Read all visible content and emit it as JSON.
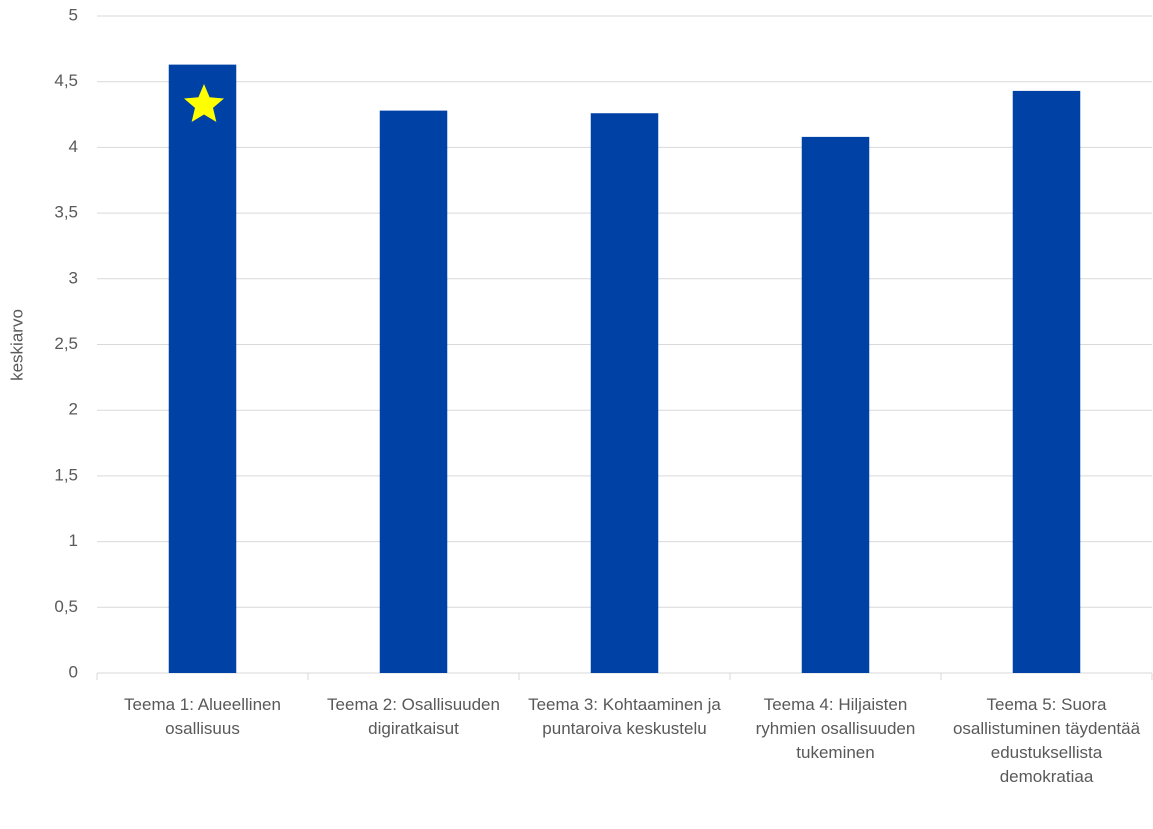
{
  "chart_data": {
    "type": "bar",
    "y_label": "keskiarvo",
    "categories": [
      "Teema 1: Alueellinen osallisuus",
      "Teema 2: Osallisuuden digiratkaisut",
      "Teema 3: Kohtaaminen ja puntaroiva keskustelu",
      "Teema 4: Hiljaisten ryhmien osallisuuden tukeminen",
      "Teema 5: Suora osallistuminen täydentää edustuksellista demokratiaa"
    ],
    "values": [
      4.63,
      4.28,
      4.26,
      4.08,
      4.43
    ],
    "color": "#0041a6",
    "ylim": [
      0,
      5
    ],
    "yticks": [
      0,
      {
        "value": 0.5,
        "label": "0,5"
      },
      1,
      {
        "value": 1.5,
        "label": "1,5"
      },
      2,
      {
        "value": 2.5,
        "label": "2,5"
      },
      3,
      {
        "value": 3.5,
        "label": "3,5"
      },
      4,
      {
        "value": 4.5,
        "label": "4,5"
      },
      5
    ],
    "grid": true
  }
}
